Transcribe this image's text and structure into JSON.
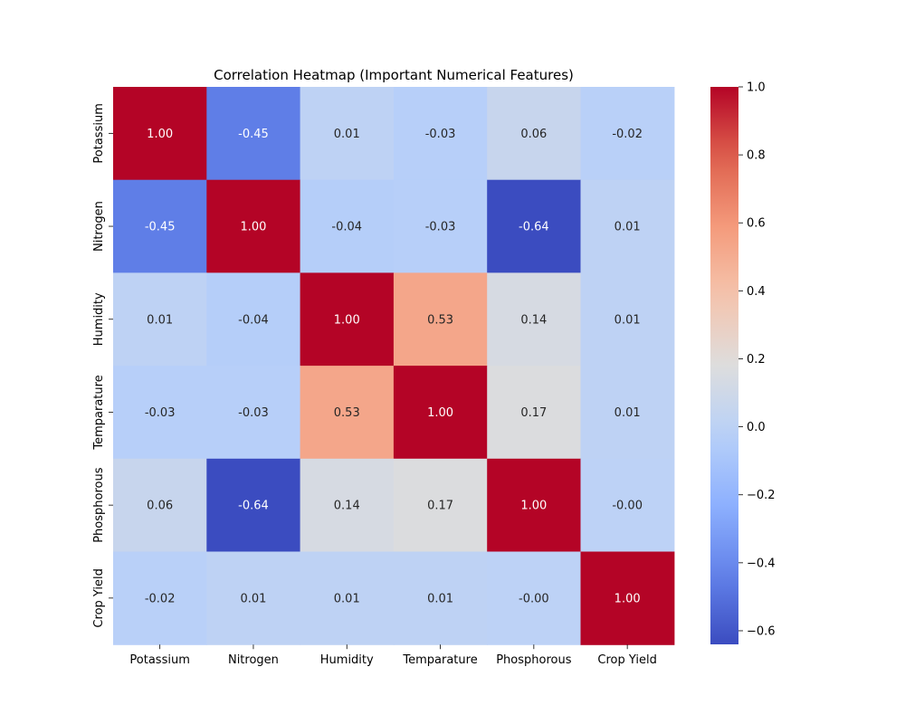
{
  "chart_data": {
    "type": "heatmap",
    "title": "Correlation Heatmap (Important Numerical Features)",
    "rows": [
      "Potassium",
      "Nitrogen",
      "Humidity",
      "Temparature",
      "Phosphorous",
      "Crop Yield"
    ],
    "columns": [
      "Potassium",
      "Nitrogen",
      "Humidity",
      "Temparature",
      "Phosphorous",
      "Crop Yield"
    ],
    "values": [
      [
        1.0,
        -0.45,
        0.01,
        -0.03,
        0.06,
        -0.02
      ],
      [
        -0.45,
        1.0,
        -0.04,
        -0.03,
        -0.64,
        0.01
      ],
      [
        0.01,
        -0.04,
        1.0,
        0.53,
        0.14,
        0.01
      ],
      [
        -0.03,
        -0.03,
        0.53,
        1.0,
        0.17,
        0.01
      ],
      [
        0.06,
        -0.64,
        0.14,
        0.17,
        1.0,
        -0.0
      ],
      [
        -0.02,
        0.01,
        0.01,
        0.01,
        -0.0,
        1.0
      ]
    ],
    "cell_labels": [
      [
        "1.00",
        "-0.45",
        "0.01",
        "-0.03",
        "0.06",
        "-0.02"
      ],
      [
        "-0.45",
        "1.00",
        "-0.04",
        "-0.03",
        "-0.64",
        "0.01"
      ],
      [
        "0.01",
        "-0.04",
        "1.00",
        "0.53",
        "0.14",
        "0.01"
      ],
      [
        "-0.03",
        "-0.03",
        "0.53",
        "1.00",
        "0.17",
        "0.01"
      ],
      [
        "0.06",
        "-0.64",
        "0.14",
        "0.17",
        "1.00",
        "-0.00"
      ],
      [
        "-0.02",
        "0.01",
        "0.01",
        "0.01",
        "-0.00",
        "1.00"
      ]
    ],
    "colormap": "coolwarm",
    "colorbar": {
      "range": [
        -0.64,
        1.0
      ],
      "ticks": [
        -0.6,
        -0.4,
        -0.2,
        0.0,
        0.2,
        0.4,
        0.6,
        0.8,
        1.0
      ],
      "tick_labels": [
        "−0.6",
        "−0.4",
        "−0.2",
        "0.0",
        "0.2",
        "0.4",
        "0.6",
        "0.8",
        "1.0"
      ],
      "placement": "right"
    },
    "colors": {
      "low": "#3b4cc0",
      "mid": "#dddddd",
      "high": "#b40426"
    },
    "xlabel": "",
    "ylabel": ""
  }
}
